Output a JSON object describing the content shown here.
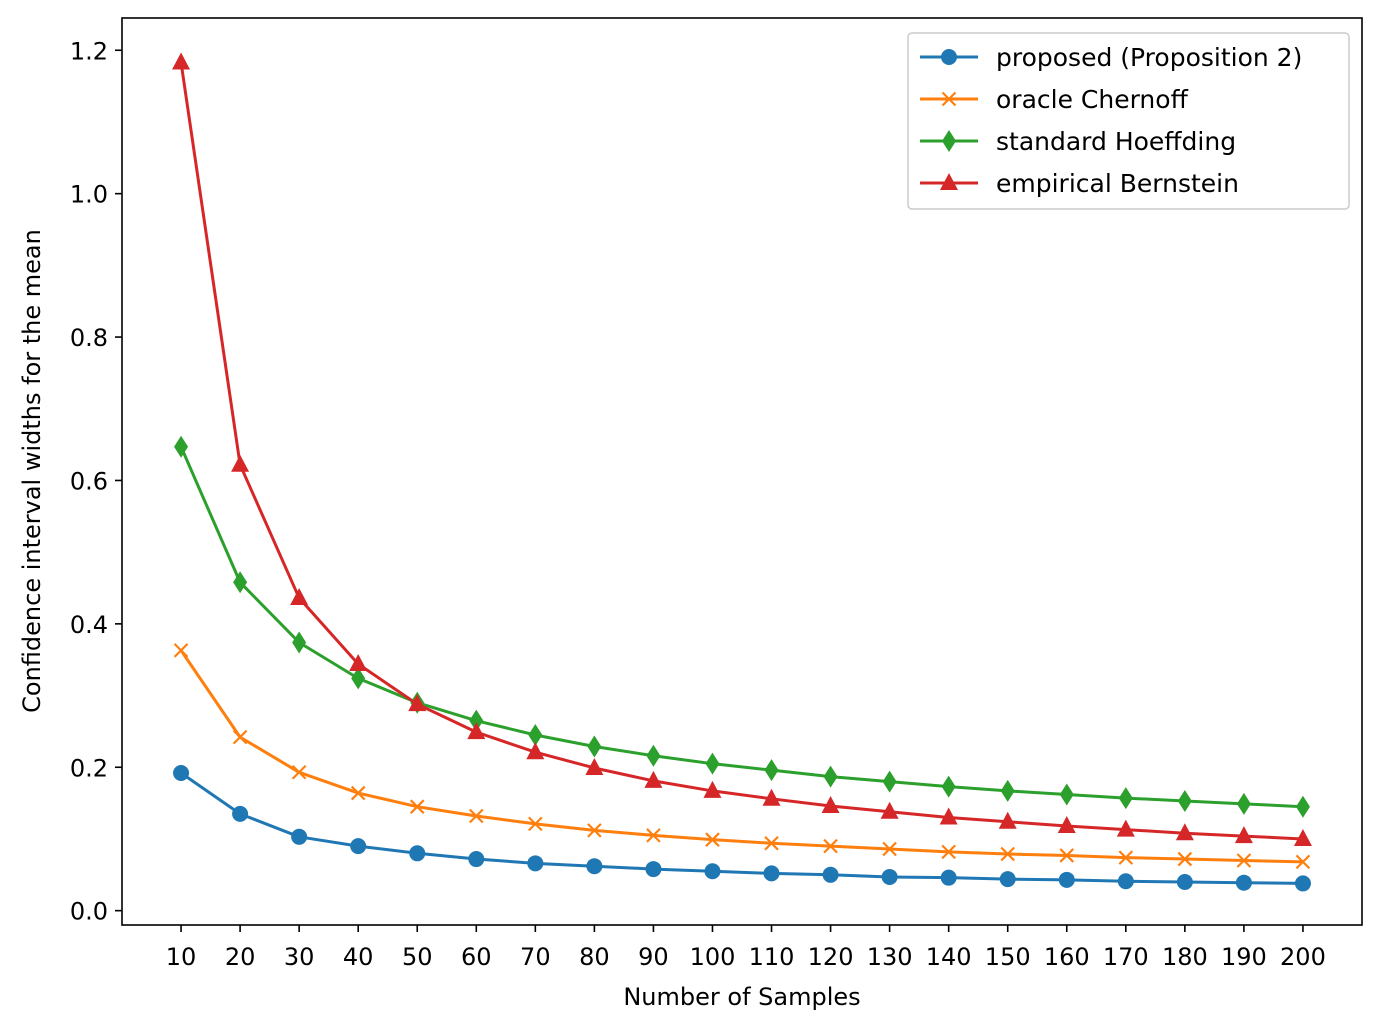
{
  "chart_data": {
    "type": "line",
    "xlabel": "Number of Samples",
    "ylabel": "Confidence interval widths for the mean",
    "xlim": [
      0,
      210
    ],
    "ylim": [
      -0.02,
      1.245
    ],
    "x": [
      10,
      20,
      30,
      40,
      50,
      60,
      70,
      80,
      90,
      100,
      110,
      120,
      130,
      140,
      150,
      160,
      170,
      180,
      190,
      200
    ],
    "x_ticks": [
      "10",
      "20",
      "30",
      "40",
      "50",
      "60",
      "70",
      "80",
      "90",
      "100",
      "110",
      "120",
      "130",
      "140",
      "150",
      "160",
      "170",
      "180",
      "190",
      "200"
    ],
    "y_ticks": [
      0.0,
      0.2,
      0.4,
      0.6,
      0.8,
      1.0,
      1.2
    ],
    "y_tick_labels": [
      "0.0",
      "0.2",
      "0.4",
      "0.6",
      "0.8",
      "1.0",
      "1.2"
    ],
    "grid": false,
    "legend_position": "top-right",
    "series": [
      {
        "name": "proposed (Proposition 2)",
        "color": "#1f77b4",
        "marker": "circle",
        "values": [
          0.192,
          0.135,
          0.103,
          0.09,
          0.08,
          0.072,
          0.066,
          0.062,
          0.058,
          0.055,
          0.052,
          0.05,
          0.047,
          0.046,
          0.044,
          0.043,
          0.041,
          0.04,
          0.039,
          0.038
        ]
      },
      {
        "name": "oracle Chernoff",
        "color": "#ff7f0e",
        "marker": "x",
        "values": [
          0.363,
          0.242,
          0.193,
          0.164,
          0.145,
          0.132,
          0.121,
          0.112,
          0.105,
          0.099,
          0.094,
          0.09,
          0.086,
          0.082,
          0.079,
          0.077,
          0.074,
          0.072,
          0.07,
          0.068
        ]
      },
      {
        "name": "standard Hoeffding",
        "color": "#2ca02c",
        "marker": "diamond",
        "values": [
          0.647,
          0.458,
          0.374,
          0.324,
          0.29,
          0.265,
          0.245,
          0.229,
          0.216,
          0.205,
          0.196,
          0.187,
          0.18,
          0.173,
          0.167,
          0.162,
          0.157,
          0.153,
          0.149,
          0.145
        ]
      },
      {
        "name": "empirical Bernstein",
        "color": "#d62728",
        "marker": "triangle",
        "values": [
          1.183,
          0.622,
          0.436,
          0.344,
          0.288,
          0.249,
          0.221,
          0.199,
          0.181,
          0.167,
          0.156,
          0.146,
          0.138,
          0.13,
          0.124,
          0.118,
          0.113,
          0.108,
          0.104,
          0.1
        ]
      }
    ]
  }
}
